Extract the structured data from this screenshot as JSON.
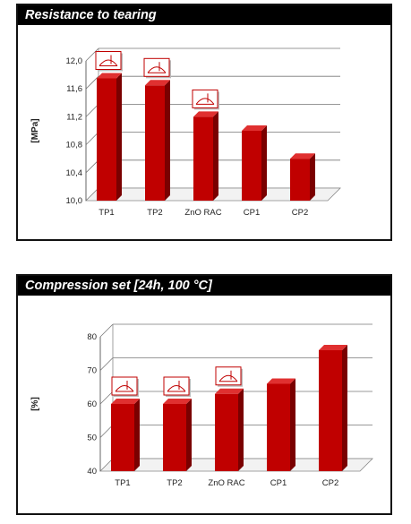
{
  "chart_data": [
    {
      "type": "bar",
      "title": "Resistance to tearing",
      "ylabel": "[MPa]",
      "categories": [
        "TP1",
        "TP2",
        "ZnO RAC",
        "CP1",
        "CP2"
      ],
      "values": [
        11.75,
        11.65,
        11.2,
        11.0,
        10.6
      ],
      "ylim": [
        10.0,
        12.0
      ],
      "yticks": [
        "10,0",
        "10,4",
        "10,8",
        "11,2",
        "11,6",
        "12,0"
      ],
      "grid": true,
      "icon_categories": [
        "TP1",
        "TP2",
        "ZnO RAC"
      ],
      "bar_color": "#c00000"
    },
    {
      "type": "bar",
      "title": "Compression set [24h, 100 °C]",
      "ylabel": "[%]",
      "categories": [
        "TP1",
        "TP2",
        "ZnO RAC",
        "CP1",
        "CP2"
      ],
      "values": [
        60,
        60,
        63,
        66,
        76
      ],
      "ylim": [
        40,
        80
      ],
      "yticks": [
        "40",
        "50",
        "60",
        "70",
        "80"
      ],
      "grid": true,
      "icon_categories": [
        "TP1",
        "TP2",
        "ZnO RAC"
      ],
      "bar_color": "#c00000"
    }
  ]
}
